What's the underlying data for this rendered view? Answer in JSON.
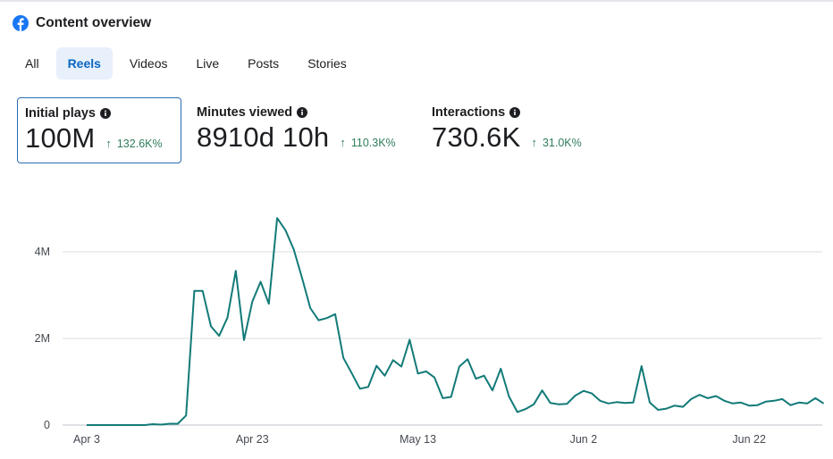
{
  "header": {
    "title": "Content overview",
    "icon": "facebook-icon",
    "brand_color": "#1877f2"
  },
  "tabs": [
    {
      "label": "All",
      "active": false
    },
    {
      "label": "Reels",
      "active": true
    },
    {
      "label": "Videos",
      "active": false
    },
    {
      "label": "Live",
      "active": false
    },
    {
      "label": "Posts",
      "active": false
    },
    {
      "label": "Stories",
      "active": false
    }
  ],
  "metrics": [
    {
      "label": "Initial plays",
      "value": "100M",
      "change": "132.6K%",
      "selected": true
    },
    {
      "label": "Minutes viewed",
      "value": "8910d 10h",
      "change": "110.3K%",
      "selected": false
    },
    {
      "label": "Interactions",
      "value": "730.6K",
      "change": "31.0K%",
      "selected": false
    }
  ],
  "colors": {
    "line": "#127a78",
    "accent": "#2b6cb0",
    "positive": "#2f7d5b"
  },
  "chart_data": {
    "type": "line",
    "x_tick_labels": [
      "Apr 3",
      "Apr 23",
      "May 13",
      "Jun 2",
      "Jun 22"
    ],
    "y_tick_labels": [
      "0",
      "2M",
      "4M"
    ],
    "y_ticks": [
      0,
      2,
      4
    ],
    "ylim": [
      0,
      4.9
    ],
    "grid": true,
    "y_unit": "M",
    "series": [
      {
        "x": [
          "Apr 3",
          "Apr 4",
          "Apr 5",
          "Apr 6",
          "Apr 7",
          "Apr 8",
          "Apr 9",
          "Apr 10",
          "Apr 11",
          "Apr 12",
          "Apr 13",
          "Apr 14",
          "Apr 15",
          "Apr 16",
          "Apr 17",
          "Apr 18",
          "Apr 19",
          "Apr 20",
          "Apr 21",
          "Apr 22",
          "Apr 23",
          "Apr 24",
          "Apr 25",
          "Apr 26",
          "Apr 27",
          "Apr 28",
          "Apr 29",
          "Apr 30",
          "May 1",
          "May 2",
          "May 3",
          "May 4",
          "May 5",
          "May 6",
          "May 7",
          "May 8",
          "May 9",
          "May 10",
          "May 11",
          "May 12",
          "May 13",
          "May 14",
          "May 15",
          "May 16",
          "May 17",
          "May 18",
          "May 19",
          "May 20",
          "May 21",
          "May 22",
          "May 23",
          "May 24",
          "May 25",
          "May 26",
          "May 27",
          "May 28",
          "May 29",
          "May 30",
          "May 31",
          "Jun 1",
          "Jun 2",
          "Jun 3",
          "Jun 4",
          "Jun 5",
          "Jun 6",
          "Jun 7",
          "Jun 8",
          "Jun 9",
          "Jun 10",
          "Jun 11",
          "Jun 12",
          "Jun 13",
          "Jun 14",
          "Jun 15",
          "Jun 16",
          "Jun 17",
          "Jun 18",
          "Jun 19",
          "Jun 20",
          "Jun 21",
          "Jun 22",
          "Jun 23",
          "Jun 24",
          "Jun 25",
          "Jun 26",
          "Jun 27",
          "Jun 28",
          "Jun 29",
          "Jun 30",
          "Jul 1"
        ],
        "values": [
          0.0,
          0.0,
          0.0,
          0.0,
          0.0,
          0.0,
          0.0,
          0.0,
          0.02,
          0.01,
          0.03,
          0.03,
          0.22,
          3.1,
          3.1,
          2.28,
          2.06,
          2.48,
          3.56,
          1.96,
          2.85,
          3.31,
          2.8,
          4.78,
          4.5,
          4.06,
          3.4,
          2.7,
          2.42,
          2.47,
          2.56,
          1.55,
          1.2,
          0.84,
          0.88,
          1.37,
          1.14,
          1.5,
          1.35,
          1.97,
          1.19,
          1.24,
          1.1,
          0.62,
          0.65,
          1.35,
          1.52,
          1.07,
          1.14,
          0.8,
          1.3,
          0.66,
          0.3,
          0.37,
          0.48,
          0.8,
          0.51,
          0.48,
          0.49,
          0.68,
          0.79,
          0.73,
          0.56,
          0.5,
          0.53,
          0.51,
          0.52,
          1.36,
          0.52,
          0.35,
          0.38,
          0.45,
          0.42,
          0.6,
          0.7,
          0.62,
          0.67,
          0.56,
          0.5,
          0.52,
          0.45,
          0.46,
          0.54,
          0.56,
          0.6,
          0.46,
          0.52,
          0.5,
          0.62,
          0.5
        ]
      }
    ]
  }
}
